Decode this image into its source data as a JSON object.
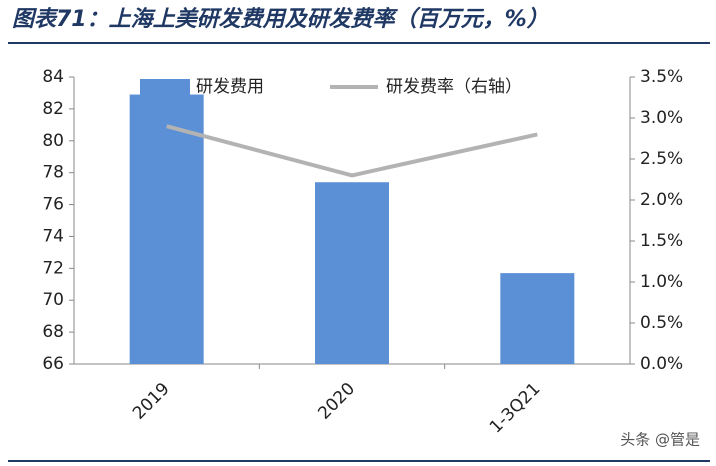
{
  "chart_data": {
    "type": "bar",
    "title": "图表71：上海上美研发费用及研发费率（百万元，%）",
    "categories": [
      "2019",
      "2020",
      "1-3Q21"
    ],
    "series": [
      {
        "name": "研发费用",
        "color": "#5b8fd6",
        "values": [
          82.9,
          77.4,
          71.7
        ]
      },
      {
        "name": "研发费率（右轴）",
        "color": "#b3b3b3",
        "type": "line",
        "axis": "y2",
        "values": [
          2.9,
          2.3,
          2.8
        ]
      }
    ],
    "ylim": [
      66,
      84
    ],
    "yticks": [
      66,
      68,
      70,
      72,
      74,
      76,
      78,
      80,
      82,
      84
    ],
    "y2lim": [
      0,
      3.5
    ],
    "y2ticks": [
      {
        "value": 0,
        "label": "0.0%"
      },
      {
        "value": 0.5,
        "label": "0.5%"
      },
      {
        "value": 1,
        "label": "1.0%"
      },
      {
        "value": 1.5,
        "label": "1.5%"
      },
      {
        "value": 2,
        "label": "2.0%"
      },
      {
        "value": 2.5,
        "label": "2.5%"
      },
      {
        "value": 3,
        "label": "3.0%"
      },
      {
        "value": 3.5,
        "label": "3.5%"
      }
    ],
    "grid": false,
    "watermark": "头条 @管是"
  }
}
